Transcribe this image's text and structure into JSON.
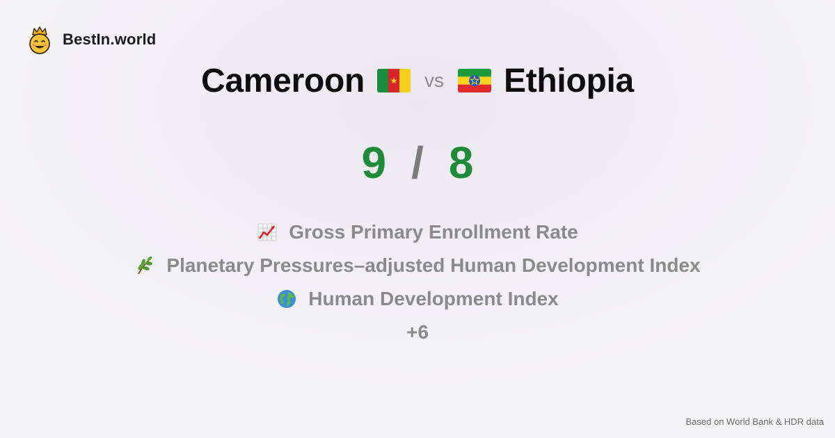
{
  "brand": {
    "name": "BestIn.world",
    "logo_icon": "crowned-smiley-icon"
  },
  "comparison": {
    "left_country": "Cameroon",
    "left_flag": "cameroon-flag-icon",
    "vs_label": "vs",
    "right_country": "Ethiopia",
    "right_flag": "ethiopia-flag-icon"
  },
  "score": {
    "left": "9",
    "separator": "/",
    "right": "8",
    "color": "#1f8b3a"
  },
  "metrics": [
    {
      "icon": "chart-increasing-icon",
      "label": "Gross Primary Enrollment Rate"
    },
    {
      "icon": "herb-icon",
      "label": "Planetary Pressures–adjusted Human Development Index"
    },
    {
      "icon": "globe-icon",
      "label": "Human Development Index"
    }
  ],
  "more_label": "+6",
  "footer": {
    "source": "Based on World Bank & HDR data"
  }
}
